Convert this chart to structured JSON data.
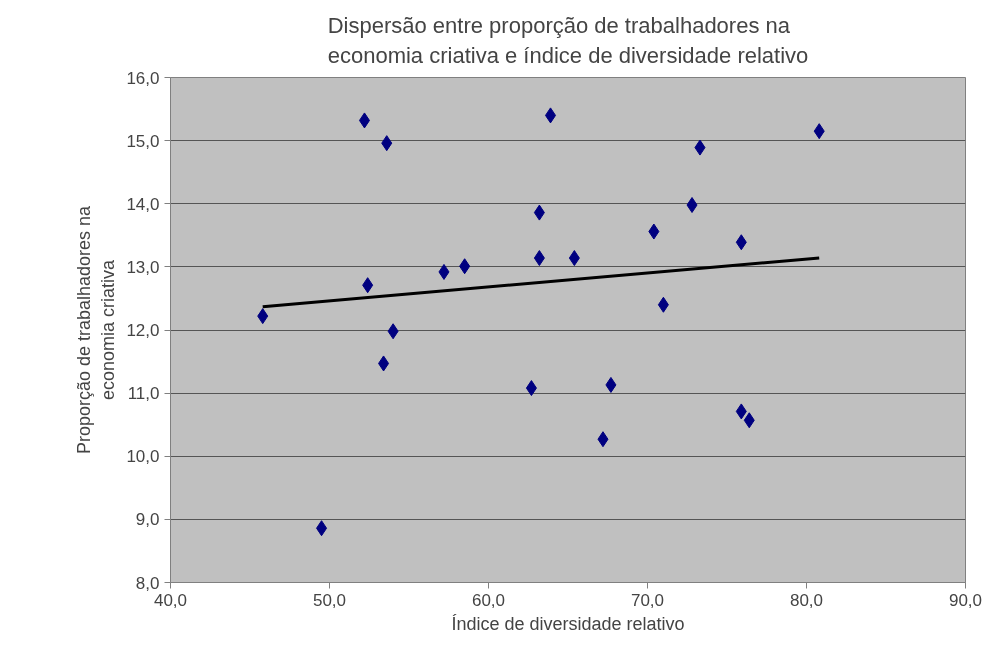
{
  "chart_data": {
    "type": "scatter",
    "title": "Dispersão entre proporção de trabalhadores na\neconomia criativa e índice de diversidade relativo",
    "xlabel": "Índice de diversidade relativo",
    "ylabel": "Proporção de trabalhadores na\neconomia criativa",
    "series": [
      {
        "color": "#000080",
        "marker": "diamond",
        "x": [
          45.8,
          52.2,
          53.6,
          63.9,
          63.2,
          63.2,
          57.2,
          58.5,
          52.4,
          54.0,
          53.4,
          62.7,
          49.5,
          65.4,
          70.4,
          72.8,
          73.3,
          80.8,
          75.9,
          71.0,
          67.7,
          67.2,
          75.9,
          76.4
        ],
        "values": [
          12.22,
          15.32,
          14.96,
          15.4,
          13.86,
          13.14,
          12.92,
          13.01,
          12.71,
          11.98,
          11.47,
          11.08,
          8.86,
          13.14,
          13.56,
          13.98,
          14.89,
          15.15,
          13.39,
          12.4,
          11.13,
          10.27,
          10.71,
          10.57
        ]
      },
      {
        "type": "line",
        "color": "#000000",
        "x": [
          45.8,
          80.8
        ],
        "values": [
          12.37,
          13.14
        ]
      }
    ],
    "xlim": [
      40,
      90
    ],
    "xticks": [
      {
        "value": 40,
        "label": "40,0"
      },
      {
        "value": 50,
        "label": "50,0"
      },
      {
        "value": 60,
        "label": "60,0"
      },
      {
        "value": 70,
        "label": "70,0"
      },
      {
        "value": 80,
        "label": "80,0"
      },
      {
        "value": 90,
        "label": "90,0"
      }
    ],
    "ylim": [
      8,
      16
    ],
    "yticks": [
      {
        "value": 8,
        "label": "8,0"
      },
      {
        "value": 9,
        "label": "9,0"
      },
      {
        "value": 10,
        "label": "10,0"
      },
      {
        "value": 11,
        "label": "11,0"
      },
      {
        "value": 12,
        "label": "12,0"
      },
      {
        "value": 13,
        "label": "13,0"
      },
      {
        "value": 14,
        "label": "14,0"
      },
      {
        "value": 15,
        "label": "15,0"
      },
      {
        "value": 16,
        "label": "16,0"
      }
    ],
    "grid": "y"
  }
}
